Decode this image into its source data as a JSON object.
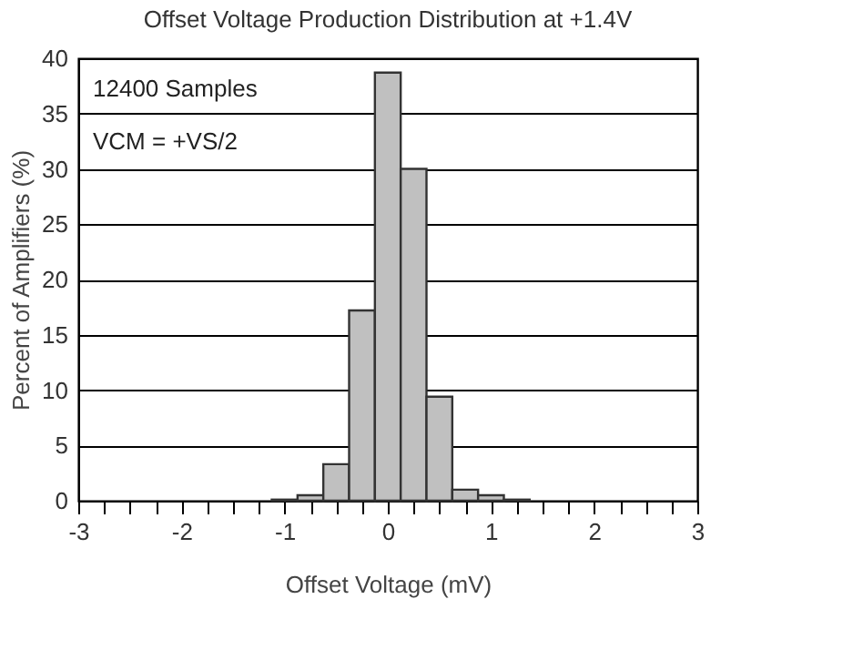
{
  "chart_data": {
    "type": "histogram",
    "title": "Offset Voltage Production Distribution at +1.4V",
    "xlabel": "Offset Voltage (mV)",
    "ylabel": "Percent of Amplifiers (%)",
    "bins": [
      -1.125,
      -0.875,
      -0.625,
      -0.375,
      -0.125,
      0.125,
      0.375,
      0.625,
      0.875,
      1.125,
      1.375
    ],
    "values": [
      0.1,
      0.5,
      3.3,
      17.2,
      38.7,
      30.0,
      9.4,
      1.0,
      0.5,
      0.1
    ],
    "color": "#c0c0c0",
    "xlim": [
      -3,
      3
    ],
    "ylim": [
      0,
      40
    ],
    "xticks": [
      -3,
      {
        "value": -2.75,
        "label": null
      },
      {
        "value": -2.5,
        "label": null
      },
      {
        "value": -2.25,
        "label": null
      },
      -2,
      {
        "value": -1.75,
        "label": null
      },
      {
        "value": -1.5,
        "label": null
      },
      {
        "value": -1.25,
        "label": null
      },
      -1,
      {
        "value": -0.75,
        "label": null
      },
      {
        "value": -0.5,
        "label": null
      },
      {
        "value": -0.25,
        "label": null
      },
      0,
      {
        "value": 0.25,
        "label": null
      },
      {
        "value": 0.5,
        "label": null
      },
      {
        "value": 0.75,
        "label": null
      },
      1,
      {
        "value": 1.25,
        "label": null
      },
      {
        "value": 1.5,
        "label": null
      },
      {
        "value": 1.75,
        "label": null
      },
      2,
      {
        "value": 2.25,
        "label": null
      },
      {
        "value": 2.5,
        "label": null
      },
      {
        "value": 2.75,
        "label": null
      },
      3
    ],
    "yticks": [
      0,
      5,
      10,
      15,
      20,
      25,
      30,
      35,
      40
    ],
    "grid": "y",
    "annotations": [
      "12400 Samples",
      "VCM = +VS/2"
    ]
  }
}
